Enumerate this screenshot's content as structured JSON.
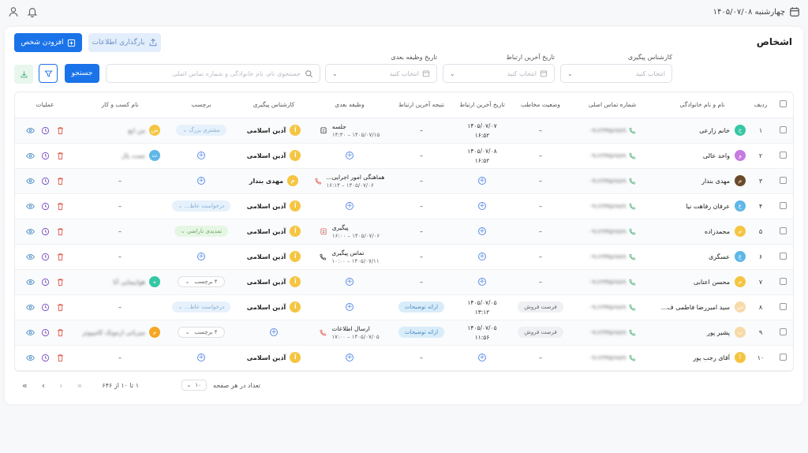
{
  "topbar": {
    "date": "چهارشنبه ۱۴۰۵/۰۷/۰۸"
  },
  "page": {
    "title": "اشخاص"
  },
  "actions": {
    "add_person": "افزودن شخص",
    "upload": "بارگذاری اطلاعات",
    "search": "جستجو"
  },
  "filters": {
    "expert_label": "کارشناس پیگیری",
    "expert_placeholder": "انتخاب کنید",
    "last_contact_label": "تاریخ آخرین ارتباط",
    "last_contact_placeholder": "انتخاب کنید",
    "next_task_label": "تاریخ وظیفه بعدی",
    "next_task_placeholder": "انتخاب کنید",
    "search_placeholder": "جستجوی نام، نام خانوادگی و شماره تماس اصلی"
  },
  "table": {
    "headers": [
      "ردیف",
      "نام و نام خانوادگی",
      "شماره تماس اصلی",
      "وضعیت مخاطب",
      "تاریخ آخرین ارتباط",
      "نتیجه آخرین ارتباط",
      "وظیفه بعدی",
      "کارشناس پیگیری",
      "برچسب",
      "نام کسب و کار",
      "عملیات"
    ],
    "rows": [
      {
        "idx": "۱",
        "name": "خانم زارعی",
        "av": "خ",
        "avc": "#35c7a5",
        "phone": "۰۹۱۲۳۴۵۶۷۸۹",
        "status": "–",
        "last": "۱۴۰۵/۰۷/۰۷",
        "lastTime": "۱۶:۵۲",
        "result": "–",
        "task": "جلسه",
        "taskDate": "۱۴۰۵/۰۷/۱۵ – ۱۴:۳۰",
        "expert": "آذین اسلامی",
        "tag": "مشتری بزرگ",
        "biz": "من ابع",
        "bizAv": "س",
        "bizC": "#f5c542"
      },
      {
        "idx": "۲",
        "name": "واحد عالی",
        "av": "و",
        "avc": "#c57be0",
        "phone": "۰۹۱۲۳۴۵۶۷۸۹",
        "status": "–",
        "last": "۱۴۰۵/۰۷/۰۸",
        "lastTime": "۱۶:۵۲",
        "result": "–",
        "task": "",
        "taskDate": "",
        "expert": "آذین اسلامی",
        "tag": "",
        "biz": "تست پال",
        "bizAv": "ت",
        "bizC": "#5fb7e8"
      },
      {
        "idx": "۳",
        "name": "مهدی بندار",
        "av": "م",
        "avc": "#6b4a2b",
        "phone": "۰۹۱۲۳۴۵۶۷۸۹",
        "status": "–",
        "last": "",
        "lastTime": "",
        "result": "–",
        "task": "هماهنگی امور اجرایی...",
        "taskDate": "۱۴۰۵/۰۷/۰۶ – ۱۶:۱۴",
        "expert": "مهدی بندار",
        "tag": "",
        "biz": "–",
        "bizAv": "",
        "bizC": ""
      },
      {
        "idx": "۴",
        "name": "عرفان رفاهت نیا",
        "av": "ع",
        "avc": "#5fb7e8",
        "phone": "۰۹۱۲۳۴۵۶۷۸۹",
        "status": "–",
        "last": "",
        "lastTime": "",
        "result": "–",
        "task": "",
        "taskDate": "",
        "expert": "آذین اسلامی",
        "tag": "درخواست عاط...",
        "biz": "–",
        "bizAv": "",
        "bizC": ""
      },
      {
        "idx": "۵",
        "name": "محمدزاده",
        "av": "م",
        "avc": "#f5c542",
        "phone": "۰۹۱۲۳۴۵۶۷۸۹",
        "status": "–",
        "last": "",
        "lastTime": "",
        "result": "–",
        "task": "پیگیری",
        "taskDate": "۱۴۰۵/۰۷/۰۶ – ۱۶:۰۰",
        "expert": "آذین اسلامی",
        "tag": "تمدیدی ناراضی",
        "biz": "–",
        "bizAv": "",
        "bizC": ""
      },
      {
        "idx": "۶",
        "name": "عسگری",
        "av": "ع",
        "avc": "#5fb7e8",
        "phone": "۰۹۱۲۳۴۵۶۷۸۹",
        "status": "–",
        "last": "",
        "lastTime": "",
        "result": "–",
        "task": "تماس پیگیری",
        "taskDate": "۱۴۰۵/۰۷/۱۱ – ۱۰:۰۰",
        "expert": "آذین اسلامی",
        "tag": "",
        "biz": "–",
        "bizAv": "",
        "bizC": ""
      },
      {
        "idx": "۷",
        "name": "محسن اعتابی",
        "av": "م",
        "avc": "#f5c542",
        "phone": "۰۹۱۲۳۴۵۶۷۸۹",
        "status": "–",
        "last": "",
        "lastTime": "",
        "result": "–",
        "task": "",
        "taskDate": "",
        "expert": "آذین اسلامی",
        "tag": "۴ برچسب",
        "biz": "هوابیمایی آتا",
        "bizAv": "ه",
        "bizC": "#35c7a5"
      },
      {
        "idx": "۸",
        "name": "سید امیررضا فاطمی ف...",
        "av": "س",
        "avc": "#f8d9a8",
        "phone": "۰۹۱۲۳۴۵۶۷۸۹",
        "status": "فرصت فروش",
        "last": "۱۴۰۵/۰۷/۰۵",
        "lastTime": "۱۳:۱۲",
        "result": "ارائه توضیحات",
        "task": "",
        "taskDate": "",
        "expert": "آذین اسلامی",
        "tag": "درخواست عاط...",
        "biz": "–",
        "bizAv": "",
        "bizC": ""
      },
      {
        "idx": "۹",
        "name": "پشیر پور",
        "av": "پ",
        "avc": "#f8d9a8",
        "phone": "۰۹۱۲۳۴۵۶۷۸۹",
        "status": "فرصت فروش",
        "last": "۱۴۰۵/۰۷/۰۵",
        "lastTime": "۱۱:۵۶",
        "result": "ارائه توضیحات",
        "task": "ارسال اطلاعات",
        "taskDate": "۱۴۰۵/۰۷/۰۵ – ۱۷:۰۰",
        "expert": "",
        "tag": "۴ برچسب",
        "biz": "میزبانی ازمونک کامپیوتر",
        "bizAv": "م",
        "bizC": "#f5a623"
      },
      {
        "idx": "۱۰",
        "name": "آقای رجب پور",
        "av": "آ",
        "avc": "#f5c542",
        "phone": "۰۹۱۲۳۴۵۶۷۸۹",
        "status": "–",
        "last": "",
        "lastTime": "",
        "result": "–",
        "task": "",
        "taskDate": "",
        "expert": "آذین اسلامی",
        "tag": "",
        "biz": "–",
        "bizAv": "",
        "bizC": ""
      }
    ]
  },
  "footer": {
    "per_page_label": "تعداد در هر صفحه",
    "per_page": "۱۰",
    "range": "۱ تا ۱۰ از ۶۴۶"
  }
}
